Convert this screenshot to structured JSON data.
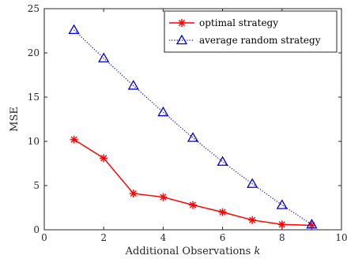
{
  "chart_data": {
    "type": "line",
    "xlabel": "Additional Observations k",
    "ylabel": "MSE",
    "xlim": [
      0,
      10
    ],
    "ylim": [
      0,
      25
    ],
    "xticks": [
      0,
      2,
      4,
      6,
      8,
      10
    ],
    "yticks": [
      0,
      5,
      10,
      15,
      20,
      25
    ],
    "grid": false,
    "legend_position": "top-right",
    "x": [
      1,
      2,
      3,
      4,
      5,
      6,
      7,
      8,
      9
    ],
    "series": [
      {
        "name": "optimal strategy",
        "values": [
          10.2,
          8.1,
          4.1,
          3.7,
          2.8,
          2.0,
          1.1,
          0.6,
          0.5
        ],
        "color": "#ff0000",
        "line_style": "solid",
        "marker": "asterisk"
      },
      {
        "name": "average random strategy",
        "values": [
          22.6,
          19.4,
          16.3,
          13.3,
          10.4,
          7.7,
          5.2,
          2.8,
          0.6
        ],
        "color": "#0000cc",
        "line_style": "dotted",
        "marker": "triangle"
      }
    ]
  }
}
